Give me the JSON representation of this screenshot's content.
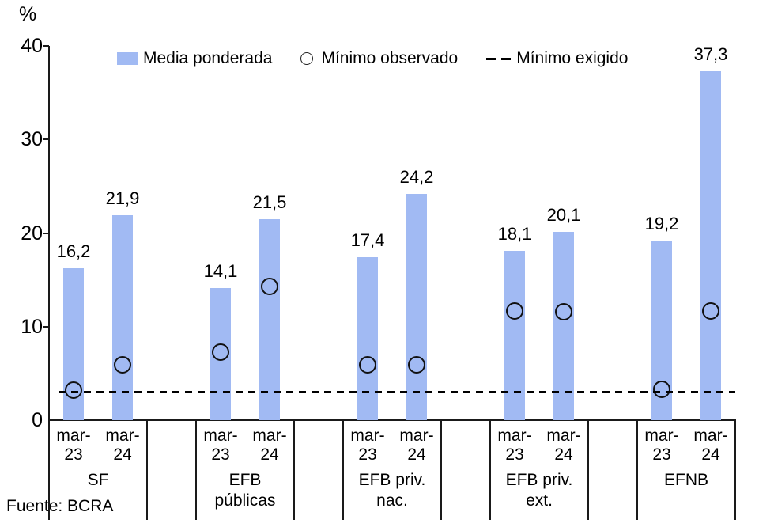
{
  "chart_data": {
    "type": "bar",
    "title": "",
    "unit_label": "%",
    "ylim": [
      0,
      40
    ],
    "yticks": [
      0,
      10,
      20,
      30,
      40
    ],
    "grid": false,
    "legend_position": "top",
    "legend": [
      {
        "label": "Media ponderada",
        "marker": "bar-swatch"
      },
      {
        "label": "Mínimo observado",
        "marker": "circle-outline"
      },
      {
        "label": "Mínimo exigido",
        "marker": "dashed-line"
      }
    ],
    "bar_color": "#a1baf3",
    "line_color": "#000000",
    "minimo_exigido": 3,
    "groups": [
      {
        "name": "SF",
        "columns": [
          {
            "label": "mar-23",
            "media_ponderada": 16.2,
            "media_ponderada_label": "16,2",
            "minimo_observado": 3.2
          },
          {
            "label": "mar-24",
            "media_ponderada": 21.9,
            "media_ponderada_label": "21,9",
            "minimo_observado": 5.9
          }
        ]
      },
      {
        "name": "EFB públicas",
        "columns": [
          {
            "label": "mar-23",
            "media_ponderada": 14.1,
            "media_ponderada_label": "14,1",
            "minimo_observado": 7.3
          },
          {
            "label": "mar-24",
            "media_ponderada": 21.5,
            "media_ponderada_label": "21,5",
            "minimo_observado": 14.3
          }
        ]
      },
      {
        "name": "EFB priv. nac.",
        "columns": [
          {
            "label": "mar-23",
            "media_ponderada": 17.4,
            "media_ponderada_label": "17,4",
            "minimo_observado": 5.9
          },
          {
            "label": "mar-24",
            "media_ponderada": 24.2,
            "media_ponderada_label": "24,2",
            "minimo_observado": 5.9
          }
        ]
      },
      {
        "name": "EFB priv. ext.",
        "columns": [
          {
            "label": "mar-23",
            "media_ponderada": 18.1,
            "media_ponderada_label": "18,1",
            "minimo_observado": 11.7
          },
          {
            "label": "mar-24",
            "media_ponderada": 20.1,
            "media_ponderada_label": "20,1",
            "minimo_observado": 11.6
          }
        ]
      },
      {
        "name": "EFNB",
        "columns": [
          {
            "label": "mar-23",
            "media_ponderada": 19.2,
            "media_ponderada_label": "19,2",
            "minimo_observado": 3.3
          },
          {
            "label": "mar-24",
            "media_ponderada": 37.3,
            "media_ponderada_label": "37,3",
            "minimo_observado": 11.7
          }
        ]
      }
    ],
    "source": "Fuente: BCRA"
  }
}
